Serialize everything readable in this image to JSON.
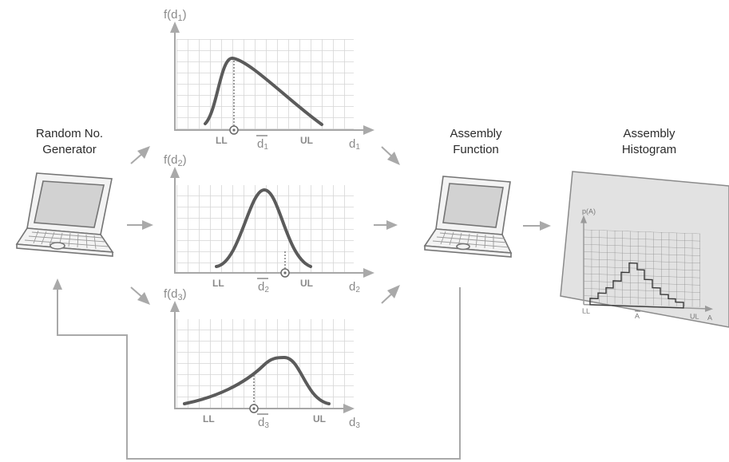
{
  "labels": {
    "rng_title_1": "Random No.",
    "rng_title_2": "Generator",
    "assembly_function_1": "Assembly",
    "assembly_function_2": "Function",
    "histogram_title_1": "Assembly",
    "histogram_title_2": "Histogram"
  },
  "plot1": {
    "ylabel_f": "f(d",
    "ylabel_sub": "1",
    "ylabel_close": ")",
    "ll": "LL",
    "ul": "UL",
    "mean": "d",
    "mean_sub": "1",
    "xlabel": "d",
    "xlabel_sub": "1"
  },
  "plot2": {
    "ylabel_f": "f(d",
    "ylabel_sub": "2",
    "ylabel_close": ")",
    "ll": "LL",
    "ul": "UL",
    "mean": "d",
    "mean_sub": "2",
    "xlabel": "d",
    "xlabel_sub": "2"
  },
  "plot3": {
    "ylabel_f": "f(d",
    "ylabel_sub": "3",
    "ylabel_close": ")",
    "ll": "LL",
    "ul": "UL",
    "mean": "d",
    "mean_sub": "3",
    "xlabel": "d",
    "xlabel_sub": "3"
  },
  "histogram": {
    "ylabel": "p(A)",
    "ll": "LL",
    "mean": "A",
    "ul": "UL",
    "xlabel": "A"
  },
  "colors": {
    "curve": "#5b5b5b",
    "grid": "#d6d6d6",
    "arrow": "#a9a9a9"
  }
}
